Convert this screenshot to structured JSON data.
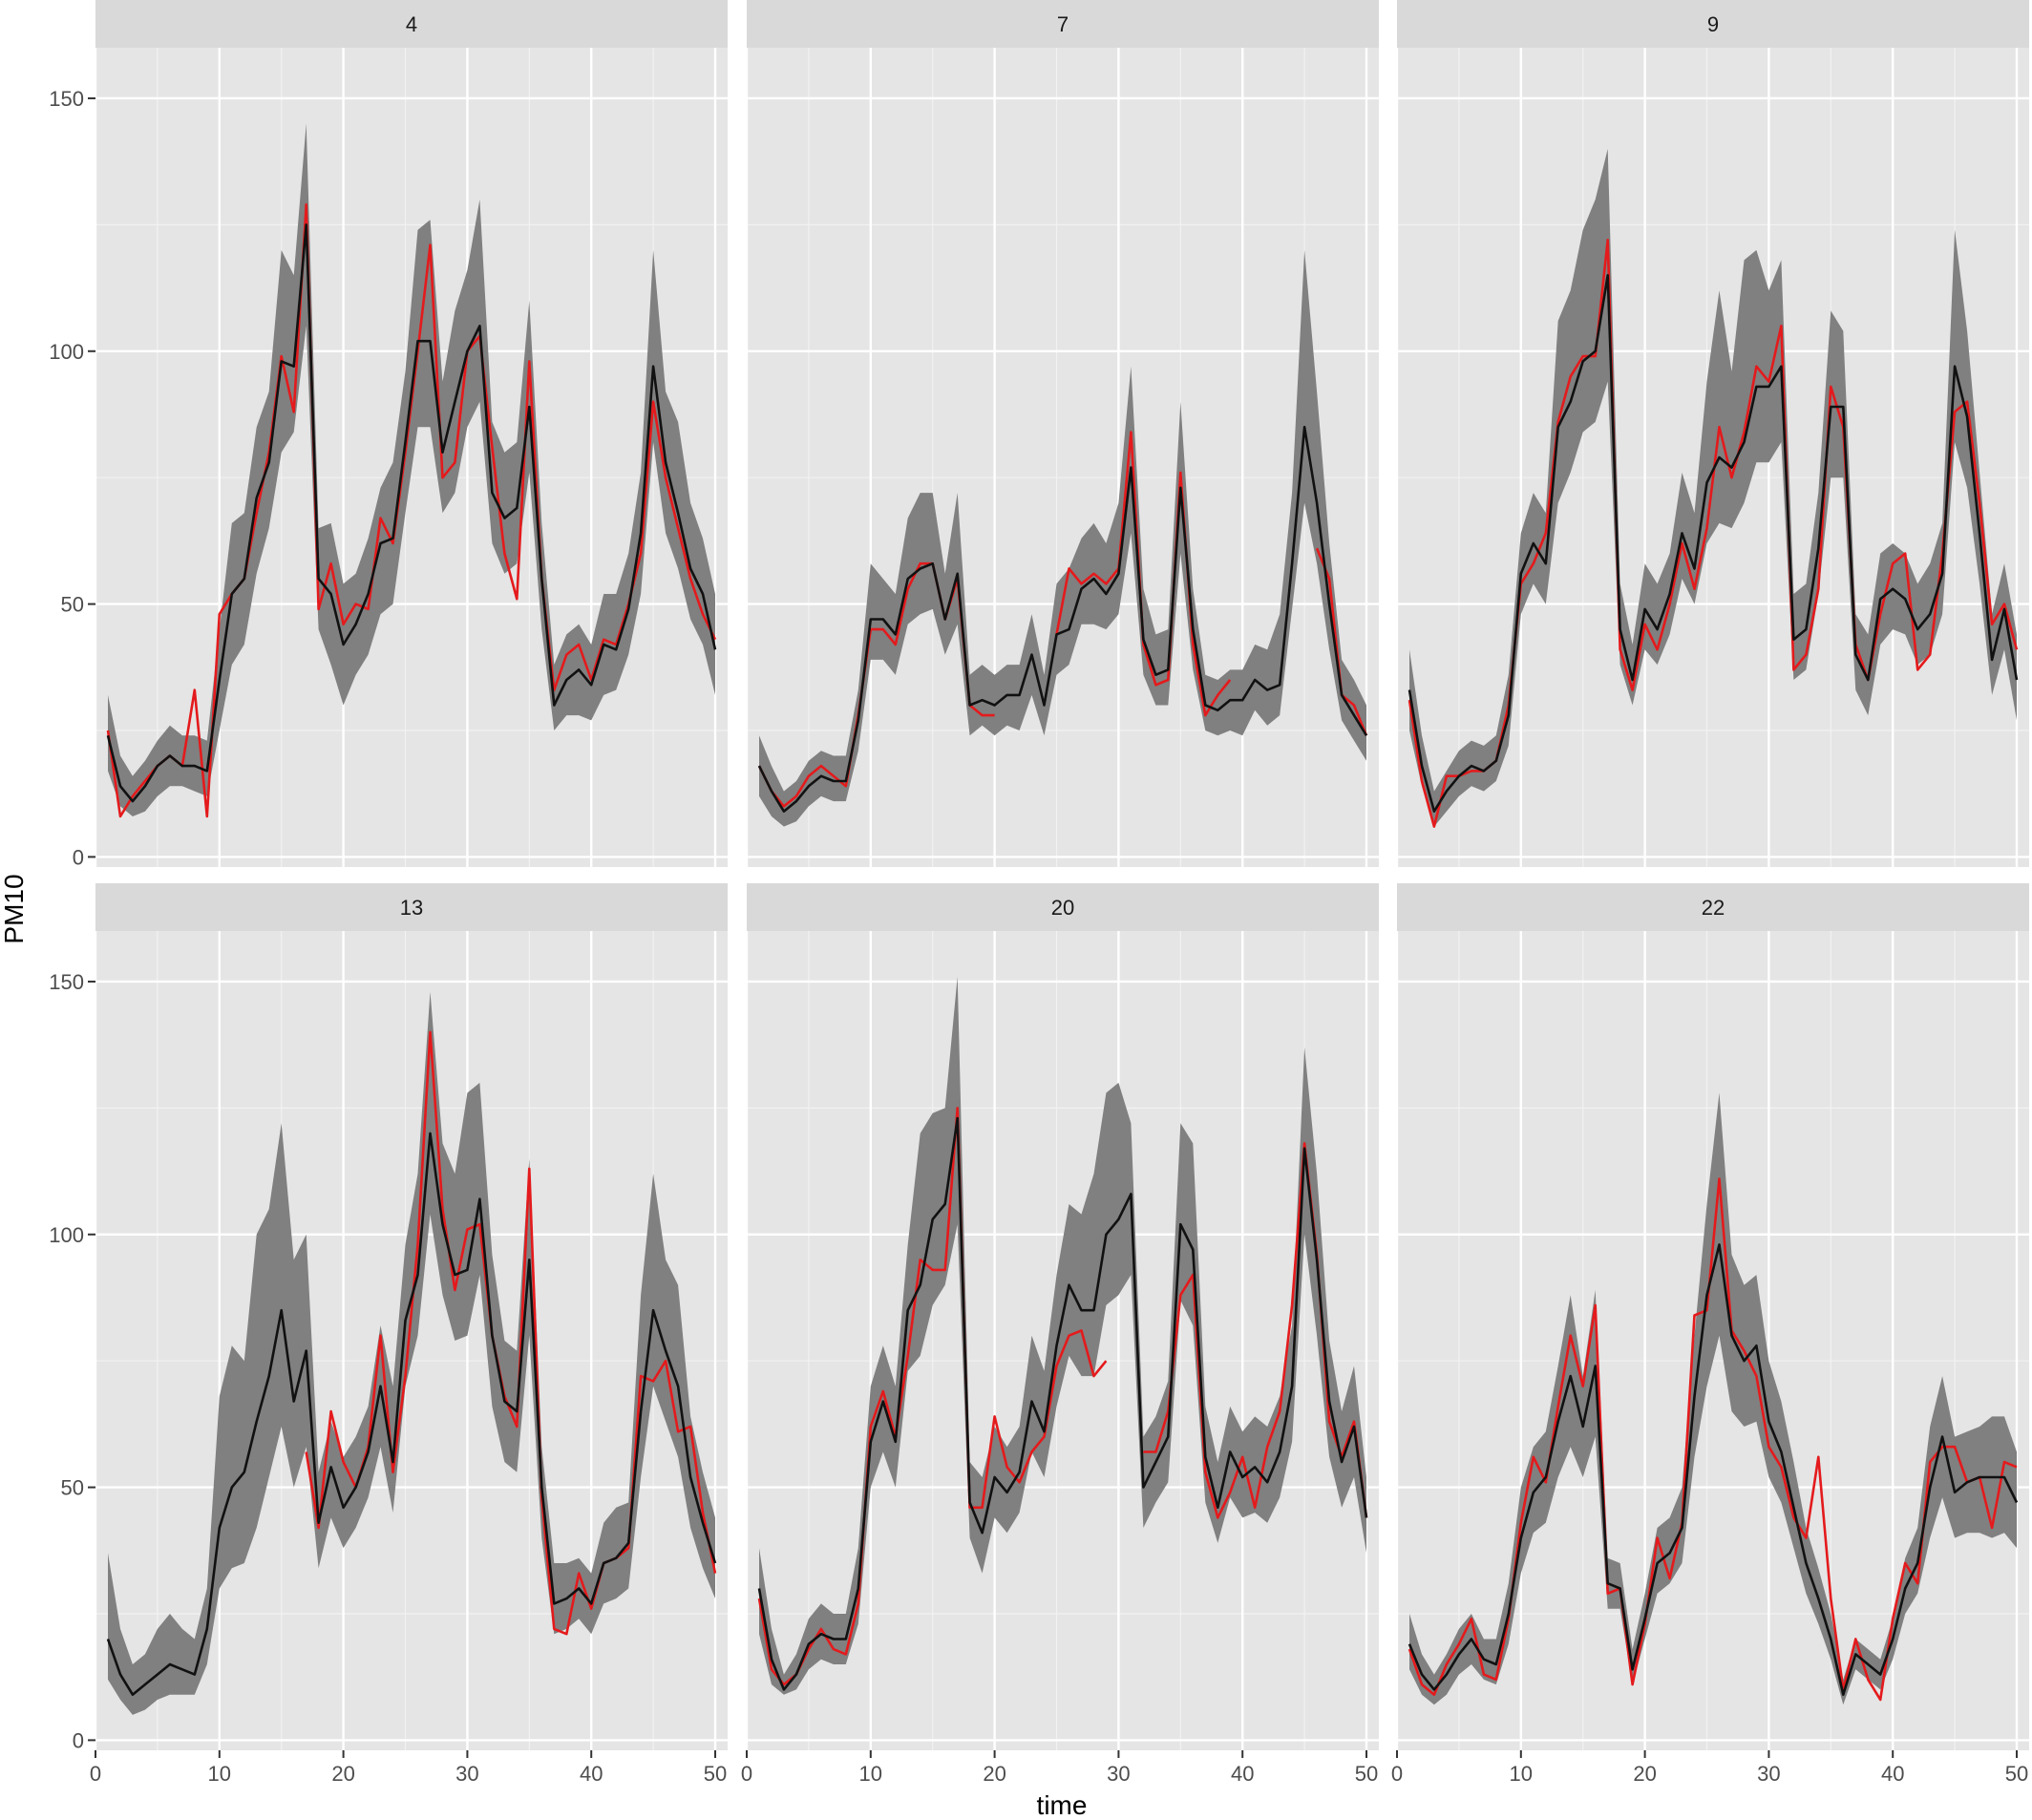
{
  "chart_data": {
    "type": "line",
    "xlabel": "time",
    "ylabel": "PM10",
    "xlim": [
      0,
      51
    ],
    "ylim": [
      -2,
      160
    ],
    "x_ticks": [
      0,
      10,
      20,
      30,
      40,
      50
    ],
    "y_ticks": [
      0,
      50,
      100,
      150
    ],
    "colors": {
      "observed": "#e41a1c",
      "predicted": "#111111",
      "band": "#808080"
    },
    "x": [
      1,
      2,
      3,
      4,
      5,
      6,
      7,
      8,
      9,
      10,
      11,
      12,
      13,
      14,
      15,
      16,
      17,
      18,
      19,
      20,
      21,
      22,
      23,
      24,
      25,
      26,
      27,
      28,
      29,
      30,
      31,
      32,
      33,
      34,
      35,
      36,
      37,
      38,
      39,
      40,
      41,
      42,
      43,
      44,
      45,
      46,
      47,
      48,
      49,
      50
    ],
    "panels": [
      {
        "label": "4",
        "observed": [
          25,
          8,
          12,
          15,
          18,
          20,
          18,
          33,
          8,
          48,
          52,
          55,
          68,
          80,
          99,
          88,
          129,
          49,
          58,
          46,
          50,
          49,
          67,
          62,
          80,
          100,
          121,
          75,
          78,
          100,
          103,
          81,
          60,
          51,
          98,
          55,
          33,
          40,
          42,
          35,
          43,
          42,
          50,
          60,
          90,
          75,
          65,
          55,
          48,
          43
        ],
        "predicted": [
          24,
          14,
          11,
          14,
          18,
          20,
          18,
          18,
          17,
          35,
          52,
          55,
          71,
          78,
          98,
          97,
          125,
          55,
          52,
          42,
          46,
          52,
          62,
          63,
          82,
          102,
          102,
          80,
          90,
          100,
          105,
          72,
          67,
          69,
          89,
          55,
          30,
          35,
          37,
          34,
          42,
          41,
          49,
          64,
          97,
          78,
          68,
          57,
          52,
          41
        ],
        "lower": [
          17,
          10,
          8,
          9,
          12,
          14,
          14,
          13,
          12,
          25,
          38,
          42,
          56,
          65,
          80,
          84,
          105,
          45,
          38,
          30,
          36,
          40,
          48,
          50,
          68,
          85,
          85,
          68,
          72,
          85,
          90,
          62,
          56,
          58,
          76,
          45,
          25,
          28,
          28,
          27,
          32,
          33,
          40,
          52,
          82,
          64,
          57,
          47,
          42,
          32
        ],
        "upper": [
          32,
          20,
          16,
          19,
          23,
          26,
          24,
          24,
          23,
          45,
          66,
          68,
          85,
          92,
          120,
          115,
          145,
          65,
          66,
          54,
          56,
          63,
          73,
          78,
          96,
          124,
          126,
          94,
          108,
          116,
          130,
          86,
          80,
          82,
          110,
          66,
          38,
          44,
          46,
          42,
          52,
          52,
          60,
          76,
          120,
          92,
          86,
          70,
          63,
          52
        ]
      },
      {
        "label": "7",
        "observed": [
          18,
          13,
          10,
          12,
          16,
          18,
          16,
          14,
          28,
          45,
          45,
          42,
          53,
          58,
          58,
          47,
          55,
          30,
          28,
          28,
          null,
          null,
          null,
          null,
          44,
          57,
          54,
          56,
          54,
          57,
          84,
          42,
          34,
          35,
          76,
          42,
          28,
          32,
          35,
          null,
          null,
          null,
          null,
          null,
          null,
          61,
          55,
          32,
          30,
          24
        ],
        "predicted": [
          18,
          13,
          9,
          11,
          14,
          16,
          15,
          15,
          27,
          47,
          47,
          44,
          55,
          57,
          58,
          47,
          56,
          30,
          31,
          30,
          32,
          32,
          40,
          30,
          44,
          45,
          53,
          55,
          52,
          56,
          77,
          43,
          36,
          37,
          73,
          45,
          30,
          29,
          31,
          31,
          35,
          33,
          34,
          58,
          85,
          70,
          50,
          32,
          28,
          24
        ],
        "lower": [
          12,
          8,
          6,
          7,
          10,
          12,
          11,
          11,
          21,
          39,
          39,
          36,
          46,
          48,
          49,
          40,
          46,
          24,
          26,
          24,
          26,
          25,
          32,
          24,
          36,
          38,
          46,
          46,
          45,
          48,
          64,
          36,
          30,
          30,
          60,
          37,
          25,
          24,
          25,
          24,
          29,
          26,
          28,
          49,
          70,
          58,
          41,
          27,
          23,
          19
        ],
        "upper": [
          24,
          18,
          13,
          15,
          19,
          21,
          20,
          20,
          33,
          58,
          55,
          52,
          67,
          72,
          72,
          56,
          72,
          36,
          38,
          36,
          38,
          38,
          48,
          36,
          54,
          57,
          63,
          66,
          62,
          70,
          97,
          53,
          44,
          45,
          90,
          53,
          36,
          35,
          37,
          37,
          42,
          41,
          48,
          72,
          120,
          92,
          62,
          39,
          35,
          30
        ]
      },
      {
        "label": "9",
        "observed": [
          31,
          15,
          6,
          16,
          16,
          17,
          17,
          19,
          30,
          54,
          58,
          64,
          86,
          95,
          99,
          99,
          122,
          41,
          33,
          46,
          41,
          50,
          62,
          53,
          65,
          85,
          75,
          84,
          97,
          94,
          105,
          37,
          40,
          53,
          93,
          85,
          42,
          35,
          48,
          58,
          60,
          37,
          40,
          60,
          88,
          90,
          70,
          46,
          50,
          41
        ],
        "predicted": [
          33,
          18,
          9,
          13,
          16,
          18,
          17,
          19,
          28,
          56,
          62,
          58,
          85,
          90,
          98,
          100,
          115,
          45,
          35,
          49,
          45,
          52,
          64,
          57,
          74,
          79,
          77,
          82,
          93,
          93,
          97,
          43,
          45,
          61,
          89,
          89,
          40,
          35,
          51,
          53,
          51,
          45,
          48,
          56,
          97,
          87,
          64,
          39,
          49,
          35
        ],
        "lower": [
          25,
          14,
          6,
          9,
          12,
          14,
          13,
          15,
          22,
          48,
          54,
          50,
          70,
          76,
          84,
          86,
          94,
          38,
          30,
          41,
          38,
          44,
          55,
          50,
          62,
          66,
          65,
          70,
          78,
          78,
          82,
          35,
          37,
          52,
          75,
          75,
          33,
          28,
          42,
          45,
          44,
          38,
          40,
          48,
          82,
          73,
          54,
          32,
          41,
          27
        ],
        "upper": [
          41,
          24,
          13,
          17,
          21,
          23,
          22,
          24,
          36,
          64,
          72,
          68,
          106,
          112,
          124,
          130,
          140,
          54,
          42,
          58,
          54,
          60,
          76,
          68,
          94,
          112,
          96,
          118,
          120,
          112,
          118,
          52,
          54,
          72,
          108,
          104,
          48,
          44,
          60,
          62,
          60,
          54,
          58,
          66,
          124,
          104,
          76,
          48,
          58,
          44
        ]
      },
      {
        "label": "13",
        "observed": [
          null,
          null,
          null,
          null,
          null,
          null,
          null,
          null,
          null,
          null,
          null,
          null,
          null,
          null,
          null,
          null,
          57,
          42,
          65,
          55,
          50,
          58,
          80,
          53,
          72,
          98,
          140,
          105,
          89,
          101,
          102,
          80,
          68,
          62,
          113,
          48,
          22,
          21,
          33,
          26,
          35,
          36,
          38,
          72,
          71,
          75,
          61,
          62,
          45,
          33
        ],
        "predicted": [
          20,
          13,
          9,
          11,
          13,
          15,
          14,
          13,
          22,
          42,
          50,
          53,
          63,
          72,
          85,
          67,
          77,
          43,
          54,
          46,
          50,
          57,
          70,
          55,
          83,
          92,
          120,
          102,
          92,
          93,
          107,
          80,
          67,
          65,
          95,
          50,
          27,
          28,
          30,
          27,
          35,
          36,
          39,
          65,
          85,
          77,
          70,
          52,
          43,
          35
        ],
        "lower": [
          12,
          8,
          5,
          6,
          8,
          9,
          9,
          9,
          15,
          30,
          34,
          35,
          42,
          52,
          62,
          50,
          58,
          34,
          44,
          38,
          42,
          48,
          58,
          45,
          70,
          80,
          104,
          88,
          79,
          80,
          92,
          66,
          55,
          53,
          80,
          40,
          21,
          22,
          24,
          21,
          27,
          28,
          30,
          52,
          70,
          63,
          56,
          42,
          34,
          28
        ],
        "upper": [
          37,
          22,
          15,
          17,
          22,
          25,
          22,
          20,
          30,
          68,
          78,
          75,
          100,
          105,
          122,
          95,
          100,
          53,
          63,
          56,
          60,
          66,
          82,
          70,
          98,
          112,
          148,
          118,
          112,
          128,
          130,
          96,
          79,
          77,
          115,
          58,
          35,
          35,
          36,
          33,
          43,
          46,
          47,
          88,
          112,
          95,
          90,
          64,
          53,
          44
        ]
      },
      {
        "label": "20",
        "observed": [
          28,
          14,
          11,
          13,
          18,
          22,
          18,
          17,
          27,
          62,
          69,
          60,
          76,
          95,
          93,
          93,
          125,
          46,
          46,
          64,
          54,
          51,
          57,
          60,
          74,
          80,
          81,
          72,
          75,
          null,
          null,
          57,
          57,
          65,
          88,
          92,
          53,
          44,
          49,
          56,
          46,
          58,
          65,
          86,
          118,
          96,
          63,
          56,
          63,
          44
        ],
        "predicted": [
          30,
          16,
          10,
          13,
          19,
          21,
          20,
          20,
          30,
          59,
          67,
          59,
          85,
          90,
          103,
          106,
          123,
          47,
          41,
          52,
          49,
          53,
          67,
          61,
          78,
          90,
          85,
          85,
          100,
          103,
          108,
          50,
          55,
          60,
          102,
          97,
          56,
          46,
          57,
          52,
          54,
          51,
          57,
          70,
          117,
          95,
          67,
          55,
          62,
          44
        ],
        "lower": [
          21,
          11,
          9,
          10,
          14,
          16,
          15,
          15,
          23,
          50,
          57,
          50,
          73,
          76,
          86,
          90,
          102,
          40,
          33,
          44,
          41,
          45,
          57,
          52,
          66,
          76,
          72,
          72,
          86,
          88,
          92,
          42,
          47,
          51,
          87,
          82,
          47,
          39,
          48,
          44,
          45,
          43,
          48,
          59,
          100,
          80,
          56,
          46,
          52,
          37
        ],
        "upper": [
          38,
          22,
          13,
          17,
          24,
          27,
          25,
          25,
          38,
          70,
          78,
          70,
          98,
          120,
          124,
          125,
          151,
          55,
          52,
          62,
          58,
          62,
          80,
          73,
          92,
          106,
          104,
          112,
          128,
          130,
          122,
          60,
          64,
          71,
          122,
          118,
          66,
          55,
          66,
          61,
          64,
          62,
          68,
          82,
          137,
          112,
          79,
          65,
          74,
          52
        ]
      },
      {
        "label": "22",
        "observed": [
          18,
          11,
          9,
          15,
          19,
          24,
          13,
          12,
          24,
          43,
          56,
          51,
          66,
          80,
          70,
          86,
          29,
          30,
          11,
          23,
          40,
          32,
          43,
          84,
          85,
          111,
          81,
          77,
          72,
          58,
          54,
          44,
          40,
          56,
          28,
          10,
          20,
          12,
          8,
          24,
          35,
          31,
          55,
          58,
          58,
          51,
          52,
          42,
          55,
          54
        ],
        "predicted": [
          19,
          13,
          10,
          13,
          17,
          20,
          16,
          15,
          25,
          40,
          49,
          52,
          63,
          72,
          62,
          74,
          31,
          30,
          14,
          24,
          35,
          37,
          42,
          68,
          88,
          98,
          80,
          75,
          78,
          63,
          57,
          46,
          35,
          28,
          20,
          9,
          17,
          15,
          13,
          20,
          30,
          35,
          50,
          60,
          49,
          51,
          52,
          52,
          52,
          47
        ],
        "lower": [
          14,
          9,
          7,
          9,
          13,
          15,
          12,
          11,
          19,
          33,
          41,
          43,
          52,
          58,
          52,
          60,
          26,
          26,
          11,
          20,
          29,
          31,
          35,
          56,
          70,
          80,
          65,
          62,
          63,
          52,
          47,
          38,
          29,
          23,
          16,
          7,
          14,
          12,
          10,
          16,
          25,
          29,
          40,
          48,
          40,
          41,
          41,
          40,
          41,
          38
        ],
        "upper": [
          25,
          17,
          13,
          17,
          22,
          25,
          20,
          20,
          31,
          50,
          58,
          61,
          74,
          88,
          72,
          89,
          36,
          35,
          18,
          29,
          42,
          44,
          50,
          80,
          106,
          128,
          96,
          90,
          92,
          75,
          67,
          55,
          42,
          34,
          25,
          12,
          20,
          18,
          16,
          24,
          36,
          42,
          62,
          72,
          60,
          61,
          62,
          64,
          64,
          57
        ]
      }
    ]
  }
}
